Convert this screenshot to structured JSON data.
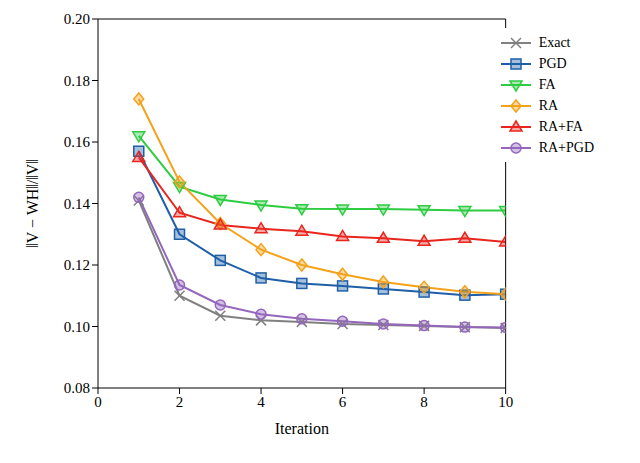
{
  "chart_data": {
    "type": "line",
    "x_label": "Iteration",
    "y_label": "‖V − WH‖/‖V‖",
    "x": [
      1,
      2,
      3,
      4,
      5,
      6,
      7,
      8,
      9,
      10
    ],
    "series": [
      {
        "name": "Exact",
        "color": "#808080",
        "marker": "x",
        "values": [
          0.141,
          0.11,
          0.1035,
          0.102,
          0.1015,
          0.1008,
          0.1005,
          0.1002,
          0.0998,
          0.0995
        ]
      },
      {
        "name": "PGD",
        "color": "#1f5fa8",
        "marker": "square",
        "values": [
          0.157,
          0.13,
          0.1215,
          0.1158,
          0.114,
          0.1132,
          0.1122,
          0.1112,
          0.1102,
          0.1105
        ]
      },
      {
        "name": "FA",
        "color": "#2ecc40",
        "marker": "triangle-down",
        "values": [
          0.162,
          0.1455,
          0.1413,
          0.1395,
          0.1383,
          0.1382,
          0.1382,
          0.138,
          0.1377,
          0.1377
        ]
      },
      {
        "name": "RA",
        "color": "#f5a21b",
        "marker": "diamond",
        "values": [
          0.174,
          0.147,
          0.1335,
          0.125,
          0.12,
          0.117,
          0.1145,
          0.1128,
          0.1113,
          0.1105
        ]
      },
      {
        "name": "RA+FA",
        "color": "#e8261e",
        "marker": "triangle-up",
        "values": [
          0.155,
          0.137,
          0.133,
          0.1318,
          0.131,
          0.1293,
          0.1287,
          0.1277,
          0.1287,
          0.1275
        ]
      },
      {
        "name": "RA+PGD",
        "color": "#9467bd",
        "marker": "circle",
        "values": [
          0.142,
          0.1135,
          0.107,
          0.104,
          0.1025,
          0.1017,
          0.1008,
          0.1003,
          0.0998,
          0.0997
        ]
      }
    ],
    "xlim": [
      0,
      10
    ],
    "xticks": [
      0,
      2,
      4,
      6,
      8,
      10
    ],
    "ylim": [
      0.08,
      0.2
    ],
    "yticks": [
      0.08,
      {
        "value": 0.1,
        "label": "0.10"
      },
      0.12,
      0.14,
      0.16,
      0.18,
      {
        "value": 0.2,
        "label": "0.20"
      }
    ],
    "grid": false,
    "legend": "upper right"
  }
}
